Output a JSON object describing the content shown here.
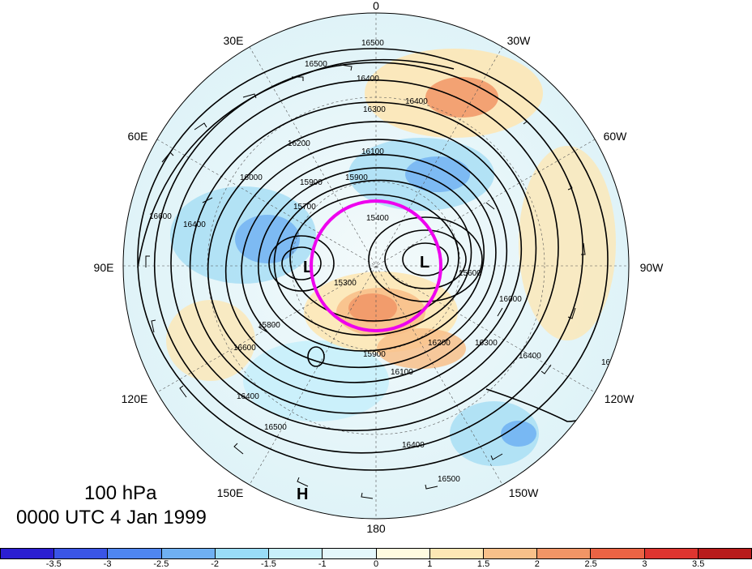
{
  "map": {
    "level": "100 hPa",
    "valid_time": "0000 UTC 4 Jan 1999",
    "longitude_labels": [
      "0",
      "30W",
      "60W",
      "90W",
      "120W",
      "150W",
      "180",
      "150E",
      "120E",
      "90E",
      "60E",
      "30E"
    ],
    "contour_labels": [
      "16500",
      "16500",
      "16400",
      "16400",
      "16300",
      "16200",
      "16100",
      "16000",
      "15900",
      "15900",
      "15700",
      "15400",
      "15300",
      "15600",
      "15800",
      "15900",
      "16000",
      "16100",
      "16200",
      "16300",
      "16400",
      "16500",
      "16600",
      "16400",
      "16500",
      "16400",
      "16500",
      "16600",
      "16400"
    ],
    "pressure_centers": [
      "L",
      "L",
      "H"
    ],
    "highlight_color": "#ee00ee",
    "contour_color": "#000000"
  },
  "colorbar": {
    "colors": [
      "#2b1fd1",
      "#3a55e6",
      "#4f86f0",
      "#6fb0f2",
      "#99dcf7",
      "#c8f0fb",
      "#e4f7fb",
      "#fffbe0",
      "#fde7b5",
      "#f8c08a",
      "#f19566",
      "#eb6344",
      "#de3530",
      "#b81b1b"
    ],
    "tick_labels": [
      "-3.5",
      "-3",
      "-2.5",
      "-2",
      "-1.5",
      "-1",
      "0",
      "1",
      "1.5",
      "2",
      "2.5",
      "3",
      "3.5"
    ]
  }
}
